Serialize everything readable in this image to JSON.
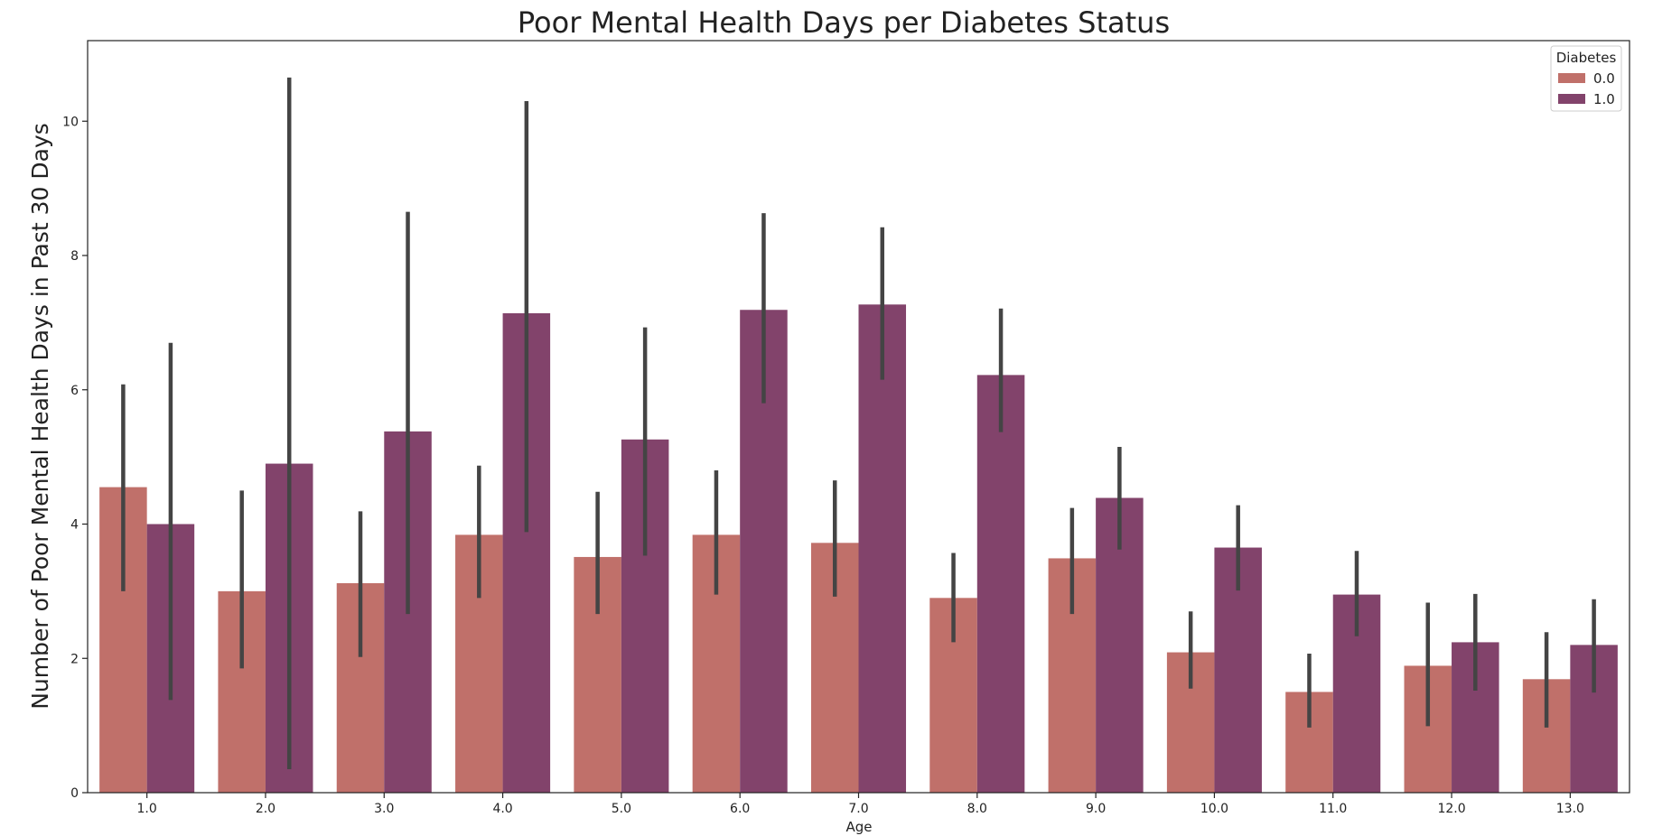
{
  "chart_data": {
    "type": "bar",
    "title": "Poor Mental Health Days per Diabetes Status",
    "xlabel": "Age",
    "ylabel": "Number of Poor Mental Health Days in Past 30 Days",
    "categories": [
      "1.0",
      "2.0",
      "3.0",
      "4.0",
      "5.0",
      "6.0",
      "7.0",
      "8.0",
      "9.0",
      "10.0",
      "11.0",
      "12.0",
      "13.0"
    ],
    "ylim": [
      0,
      11.2
    ],
    "yticks": [
      0,
      2,
      4,
      6,
      8,
      10
    ],
    "grid": false,
    "legend": {
      "title": "Diabetes",
      "placement": "top-right"
    },
    "series": [
      {
        "name": "0.0",
        "color": "#c0706a",
        "values": [
          4.55,
          3.0,
          3.12,
          3.84,
          3.51,
          3.84,
          3.72,
          2.9,
          3.49,
          2.09,
          1.5,
          1.89,
          1.69
        ],
        "ci": [
          [
            3.0,
            6.08
          ],
          [
            1.85,
            4.5
          ],
          [
            2.02,
            4.19
          ],
          [
            2.9,
            4.87
          ],
          [
            2.66,
            4.48
          ],
          [
            2.95,
            4.8
          ],
          [
            2.92,
            4.65
          ],
          [
            2.24,
            3.57
          ],
          [
            2.66,
            4.24
          ],
          [
            1.55,
            2.7
          ],
          [
            0.97,
            2.07
          ],
          [
            0.99,
            2.83
          ],
          [
            0.97,
            2.39
          ]
        ]
      },
      {
        "name": "1.0",
        "color": "#82436b",
        "values": [
          4.0,
          4.9,
          5.38,
          7.14,
          5.26,
          7.19,
          7.27,
          6.22,
          4.39,
          3.65,
          2.95,
          2.24,
          2.2
        ],
        "ci": [
          [
            1.38,
            6.7
          ],
          [
            0.35,
            10.65
          ],
          [
            2.66,
            8.65
          ],
          [
            3.88,
            10.3
          ],
          [
            3.53,
            6.93
          ],
          [
            5.8,
            8.63
          ],
          [
            6.15,
            8.42
          ],
          [
            5.37,
            7.21
          ],
          [
            3.62,
            5.15
          ],
          [
            3.01,
            4.28
          ],
          [
            2.33,
            3.6
          ],
          [
            1.52,
            2.96
          ],
          [
            1.49,
            2.88
          ]
        ]
      }
    ]
  }
}
